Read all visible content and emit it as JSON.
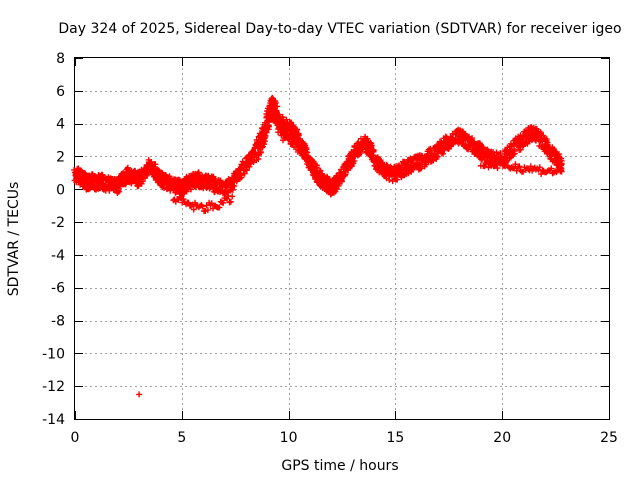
{
  "chart_data": {
    "type": "scatter",
    "title": "Day 324 of 2025, Sidereal Day-to-day VTEC variation (SDTVAR) for receiver igeo",
    "xlabel": "GPS time / hours",
    "ylabel": "SDTVAR / TECUs",
    "xlim": [
      0,
      25
    ],
    "ylim": [
      -14,
      8
    ],
    "xticks": [
      0,
      5,
      10,
      15,
      20,
      25
    ],
    "yticks": [
      -14,
      -12,
      -10,
      -8,
      -6,
      -4,
      -2,
      0,
      2,
      4,
      6,
      8
    ],
    "grid": true,
    "marker": "+",
    "color": "#ff0000",
    "series": [
      {
        "name": "SDTVAR",
        "x": [
          0.0,
          0.15,
          0.3,
          0.45,
          0.6,
          0.8,
          1.0,
          1.2,
          1.5,
          1.8,
          2.0,
          2.2,
          2.5,
          2.8,
          3.0,
          3.2,
          3.5,
          3.8,
          4.0,
          4.2,
          4.5,
          4.8,
          5.0,
          5.2,
          5.5,
          5.8,
          6.0,
          6.3,
          6.6,
          7.0,
          7.3,
          7.6,
          8.0,
          8.3,
          8.6,
          8.8,
          9.0,
          9.2,
          9.4,
          9.6,
          9.8,
          10.0,
          10.2,
          10.4,
          10.6,
          10.8,
          11.0,
          11.2,
          11.4,
          11.6,
          11.8,
          12.0,
          12.2,
          12.5,
          12.8,
          13.0,
          13.3,
          13.6,
          13.8,
          14.0,
          14.3,
          14.6,
          15.0,
          15.3,
          15.6,
          16.0,
          16.4,
          16.8,
          17.2,
          17.6,
          18.0,
          18.2,
          18.5,
          18.8,
          19.0,
          19.3,
          19.6,
          20.0,
          20.3,
          20.6,
          21.0,
          21.3,
          21.6,
          22.0,
          22.3,
          22.6,
          22.8,
          3.0
        ],
        "y": [
          0.8,
          0.9,
          0.7,
          0.5,
          0.4,
          0.5,
          0.4,
          0.5,
          0.3,
          0.4,
          0.2,
          0.6,
          0.9,
          0.7,
          0.6,
          0.9,
          1.5,
          1.0,
          0.6,
          0.5,
          0.3,
          0.2,
          0.0,
          0.3,
          0.5,
          0.6,
          0.4,
          0.5,
          0.2,
          0.0,
          0.3,
          0.8,
          1.5,
          2.0,
          2.6,
          3.2,
          4.2,
          5.0,
          4.6,
          4.0,
          3.6,
          3.5,
          3.2,
          3.0,
          2.6,
          2.2,
          1.6,
          1.2,
          0.8,
          0.5,
          0.3,
          0.1,
          0.3,
          0.9,
          1.6,
          2.0,
          2.6,
          2.8,
          2.5,
          1.8,
          1.4,
          1.0,
          0.9,
          1.2,
          1.4,
          1.6,
          1.8,
          2.2,
          2.6,
          3.0,
          3.2,
          3.0,
          2.8,
          2.5,
          2.3,
          2.0,
          1.8,
          1.8,
          2.2,
          2.6,
          3.0,
          3.4,
          3.3,
          2.8,
          2.2,
          1.8,
          1.5,
          -12.5
        ]
      }
    ]
  }
}
